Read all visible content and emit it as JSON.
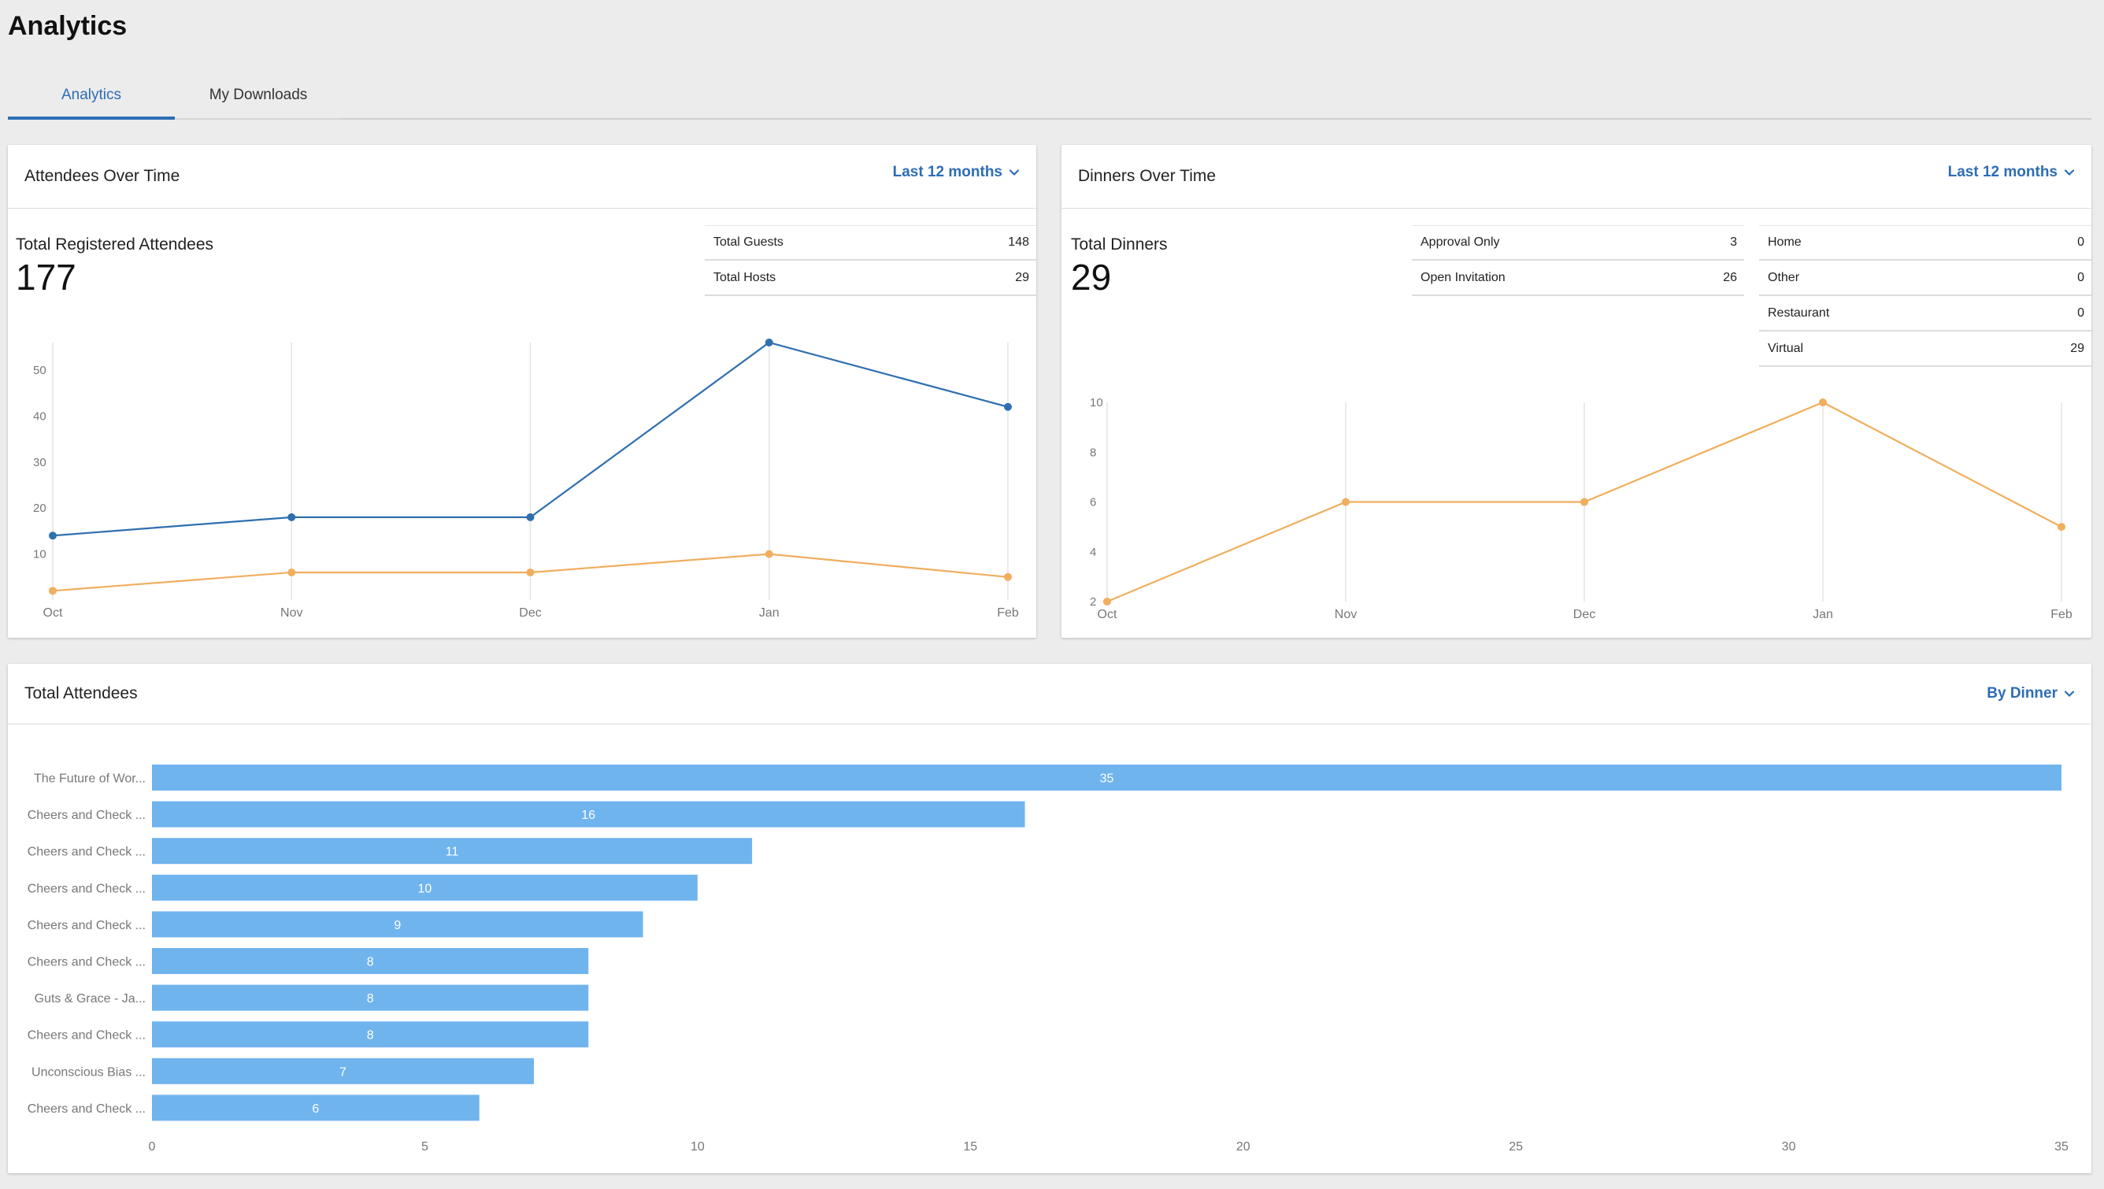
{
  "page": {
    "title": "Analytics"
  },
  "tabs": [
    {
      "label": "Analytics",
      "active": true
    },
    {
      "label": "My Downloads",
      "active": false
    }
  ],
  "colors": {
    "accent": "#2d6db5",
    "series_blue": "#2f6fae",
    "series_orange": "#f0ae5e",
    "bar": "#70b4ee"
  },
  "attendees_card": {
    "title": "Attendees Over Time",
    "range": "Last 12 months",
    "big_label": "Total Registered Attendees",
    "big_value": "177",
    "stats": [
      {
        "label": "Total Guests",
        "value": "148"
      },
      {
        "label": "Total Hosts",
        "value": "29"
      }
    ]
  },
  "dinners_card": {
    "title": "Dinners Over Time",
    "range": "Last 12 months",
    "big_label": "Total Dinners",
    "big_value": "29",
    "stats_left": [
      {
        "label": "Approval Only",
        "value": "3"
      },
      {
        "label": "Open Invitation",
        "value": "26"
      }
    ],
    "stats_right": [
      {
        "label": "Home",
        "value": "0"
      },
      {
        "label": "Other",
        "value": "0"
      },
      {
        "label": "Restaurant",
        "value": "0"
      },
      {
        "label": "Virtual",
        "value": "29"
      }
    ]
  },
  "total_card": {
    "title": "Total Attendees",
    "range": "By Dinner"
  },
  "chart_data": [
    {
      "type": "line",
      "categories": [
        "Oct",
        "Nov",
        "Dec",
        "Jan",
        "Feb"
      ],
      "y_ticks": [
        10,
        20,
        30,
        40,
        50
      ],
      "ylim": [
        0,
        56
      ],
      "grid": "vertical",
      "series": [
        {
          "values": [
            14,
            18,
            18,
            56,
            42
          ],
          "color": "#2f6fae"
        },
        {
          "values": [
            2,
            6,
            6,
            10,
            5
          ],
          "color": "#f0ae5e"
        }
      ]
    },
    {
      "type": "line",
      "categories": [
        "Oct",
        "Nov",
        "Dec",
        "Jan",
        "Feb"
      ],
      "y_ticks": [
        2,
        4,
        6,
        8,
        10
      ],
      "ylim": [
        2,
        10
      ],
      "grid": "vertical",
      "series": [
        {
          "values": [
            2,
            6,
            6,
            10,
            5
          ],
          "color": "#f0ae5e"
        }
      ]
    },
    {
      "type": "bar",
      "orientation": "horizontal",
      "categories": [
        "The Future of Wor...",
        "Cheers and Check ...",
        "Cheers and Check ...",
        "Cheers and Check ...",
        "Cheers and Check ...",
        "Cheers and Check ...",
        "Guts & Grace - Ja...",
        "Cheers and Check ...",
        "Unconscious Bias ...",
        "Cheers and Check ..."
      ],
      "values": [
        35,
        16,
        11,
        10,
        9,
        8,
        8,
        8,
        7,
        6
      ],
      "x_ticks": [
        0,
        5,
        10,
        15,
        20,
        25,
        30,
        35
      ],
      "xlim": [
        0,
        35
      ],
      "data_labels": true
    }
  ]
}
